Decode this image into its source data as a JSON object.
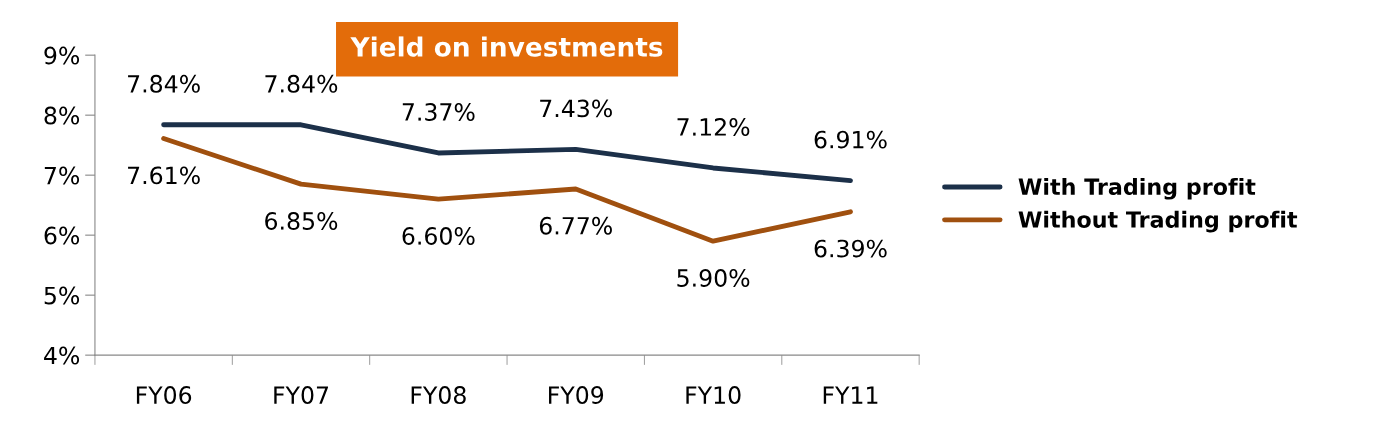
{
  "chart_data": {
    "type": "line",
    "title": "Yield on investments",
    "categories": [
      "FY06",
      "FY07",
      "FY08",
      "FY09",
      "FY10",
      "FY11"
    ],
    "series": [
      {
        "name": "With Trading profit",
        "color": "#1c3049",
        "values": [
          7.84,
          7.84,
          7.37,
          7.43,
          7.12,
          6.91
        ],
        "value_labels": [
          "7.84%",
          "7.84%",
          "7.37%",
          "7.43%",
          "7.12%",
          "6.91%"
        ]
      },
      {
        "name": "Without Trading profit",
        "color": "#a0500f",
        "values": [
          7.61,
          6.85,
          6.6,
          6.77,
          5.9,
          6.39
        ],
        "value_labels": [
          "7.61%",
          "6.85%",
          "6.60%",
          "6.77%",
          "5.90%",
          "6.39%"
        ]
      }
    ],
    "ylim": [
      4,
      9
    ],
    "yticks": [
      {
        "value": 4,
        "label": "4%"
      },
      {
        "value": 5,
        "label": "5%"
      },
      {
        "value": 6,
        "label": "6%"
      },
      {
        "value": 7,
        "label": "7%"
      },
      {
        "value": 8,
        "label": "8%"
      },
      {
        "value": 9,
        "label": "9%"
      }
    ],
    "grid": false,
    "legend": "right",
    "marker": "none",
    "line_style": "solid"
  }
}
